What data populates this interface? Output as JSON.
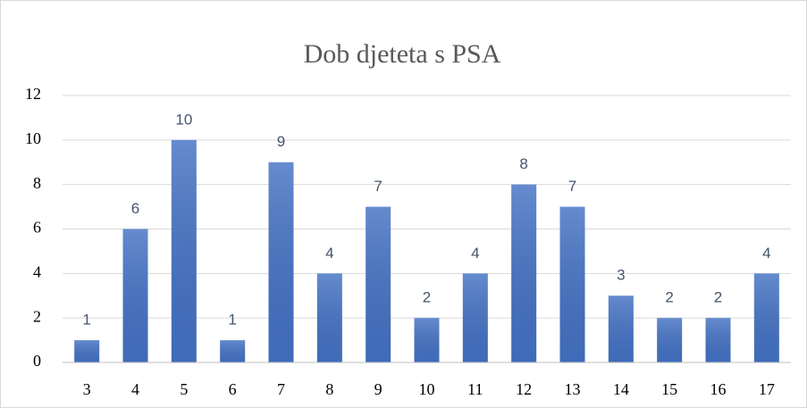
{
  "chart_data": {
    "type": "bar",
    "title": "Dob djeteta s PSA",
    "categories": [
      "3",
      "4",
      "5",
      "6",
      "7",
      "8",
      "9",
      "10",
      "11",
      "12",
      "13",
      "14",
      "15",
      "16",
      "17"
    ],
    "values": [
      1,
      6,
      10,
      1,
      9,
      4,
      7,
      2,
      4,
      8,
      7,
      3,
      2,
      2,
      4
    ],
    "color": "#4472c4",
    "ylim": [
      0,
      12
    ],
    "yticks": [
      0,
      2,
      4,
      6,
      8,
      10,
      12
    ],
    "grid": true
  }
}
